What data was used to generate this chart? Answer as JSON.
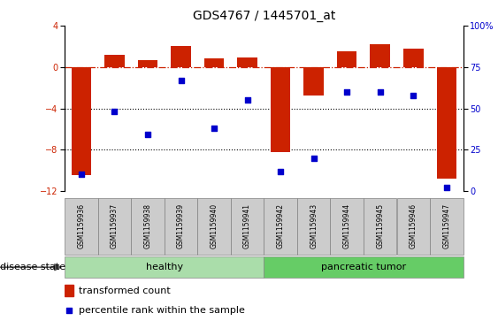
{
  "title": "GDS4767 / 1445701_at",
  "samples": [
    "GSM1159936",
    "GSM1159937",
    "GSM1159938",
    "GSM1159939",
    "GSM1159940",
    "GSM1159941",
    "GSM1159942",
    "GSM1159943",
    "GSM1159944",
    "GSM1159945",
    "GSM1159946",
    "GSM1159947"
  ],
  "transformed_count": [
    -10.5,
    1.2,
    0.7,
    2.0,
    0.8,
    0.9,
    -8.2,
    -2.8,
    1.5,
    2.2,
    1.8,
    -10.8
  ],
  "percentile_rank": [
    10,
    48,
    34,
    67,
    38,
    55,
    12,
    20,
    60,
    60,
    58,
    2
  ],
  "groups": [
    {
      "label": "healthy",
      "start": 0,
      "end": 6,
      "color": "#aaddaa"
    },
    {
      "label": "pancreatic tumor",
      "start": 6,
      "end": 12,
      "color": "#66cc66"
    }
  ],
  "ylim_left": [
    -12,
    4
  ],
  "ylim_right": [
    0,
    100
  ],
  "yticks_left": [
    4,
    0,
    -4,
    -8,
    -12
  ],
  "yticks_right": [
    100,
    75,
    50,
    25,
    0
  ],
  "bar_color": "#cc2200",
  "dot_color": "#0000cc",
  "hline_color": "#cc2200",
  "dotted_lines": [
    -4,
    -8
  ],
  "disease_state_label": "disease state",
  "legend_bar_label": "transformed count",
  "legend_dot_label": "percentile rank within the sample",
  "sample_box_color": "#cccccc",
  "title_fontsize": 10,
  "tick_fontsize": 7,
  "label_fontsize": 8
}
